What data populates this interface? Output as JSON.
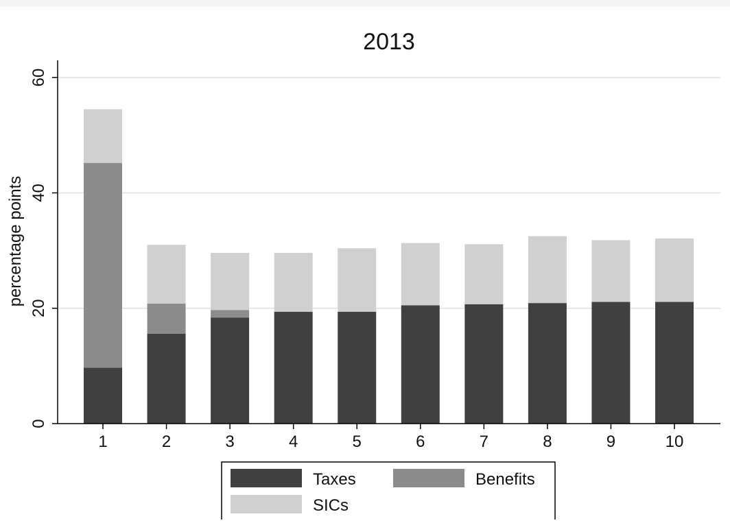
{
  "chart_data": {
    "type": "bar",
    "stacked": true,
    "title": "2013",
    "xlabel": "",
    "ylabel": "percentage points",
    "ylim": [
      0,
      63
    ],
    "yticks": [
      0,
      20,
      40,
      60
    ],
    "grid": true,
    "legend_position": "bottom",
    "categories": [
      "1",
      "2",
      "3",
      "4",
      "5",
      "6",
      "7",
      "8",
      "9",
      "10"
    ],
    "series": [
      {
        "name": "Taxes",
        "color": "#404040",
        "values": [
          9.7,
          15.6,
          18.4,
          19.4,
          19.4,
          20.5,
          20.7,
          20.9,
          21.1,
          21.1
        ]
      },
      {
        "name": "Benefits",
        "color": "#8c8c8c",
        "values": [
          35.5,
          5.2,
          1.3,
          0,
          0,
          0,
          0,
          0,
          0,
          0
        ]
      },
      {
        "name": "SICs",
        "color": "#d0d0d0",
        "values": [
          9.3,
          10.2,
          9.9,
          10.2,
          11.0,
          10.8,
          10.4,
          11.6,
          10.7,
          11.0
        ]
      }
    ]
  }
}
